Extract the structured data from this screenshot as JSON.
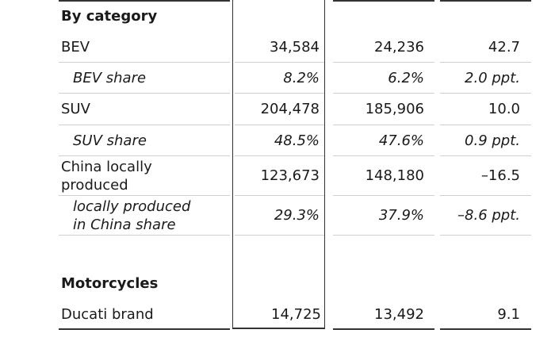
{
  "sections": [
    {
      "title": "By category",
      "rows": [
        {
          "label": "BEV",
          "v1": "34,584",
          "v2": "24,236",
          "v3": "42.7",
          "italic": false
        },
        {
          "label": "BEV share",
          "v1": "8.2%",
          "v2": "6.2%",
          "v3": "2.0 ppt.",
          "italic": true
        },
        {
          "label": "SUV",
          "v1": "204,478",
          "v2": "185,906",
          "v3": "10.0",
          "italic": false
        },
        {
          "label": "SUV share",
          "v1": "48.5%",
          "v2": "47.6%",
          "v3": "0.9 ppt.",
          "italic": true
        },
        {
          "label": "China locally produced",
          "v1": "123,673",
          "v2": "148,180",
          "v3": "–16.5",
          "italic": false
        },
        {
          "label": "locally produced in China share",
          "v1": "29.3%",
          "v2": "37.9%",
          "v3": "–8.6 ppt.",
          "italic": true
        }
      ]
    },
    {
      "title": "Motorcycles",
      "rows": [
        {
          "label": "Ducati brand",
          "v1": "14,725",
          "v2": "13,492",
          "v3": "9.1",
          "italic": false
        }
      ]
    }
  ]
}
